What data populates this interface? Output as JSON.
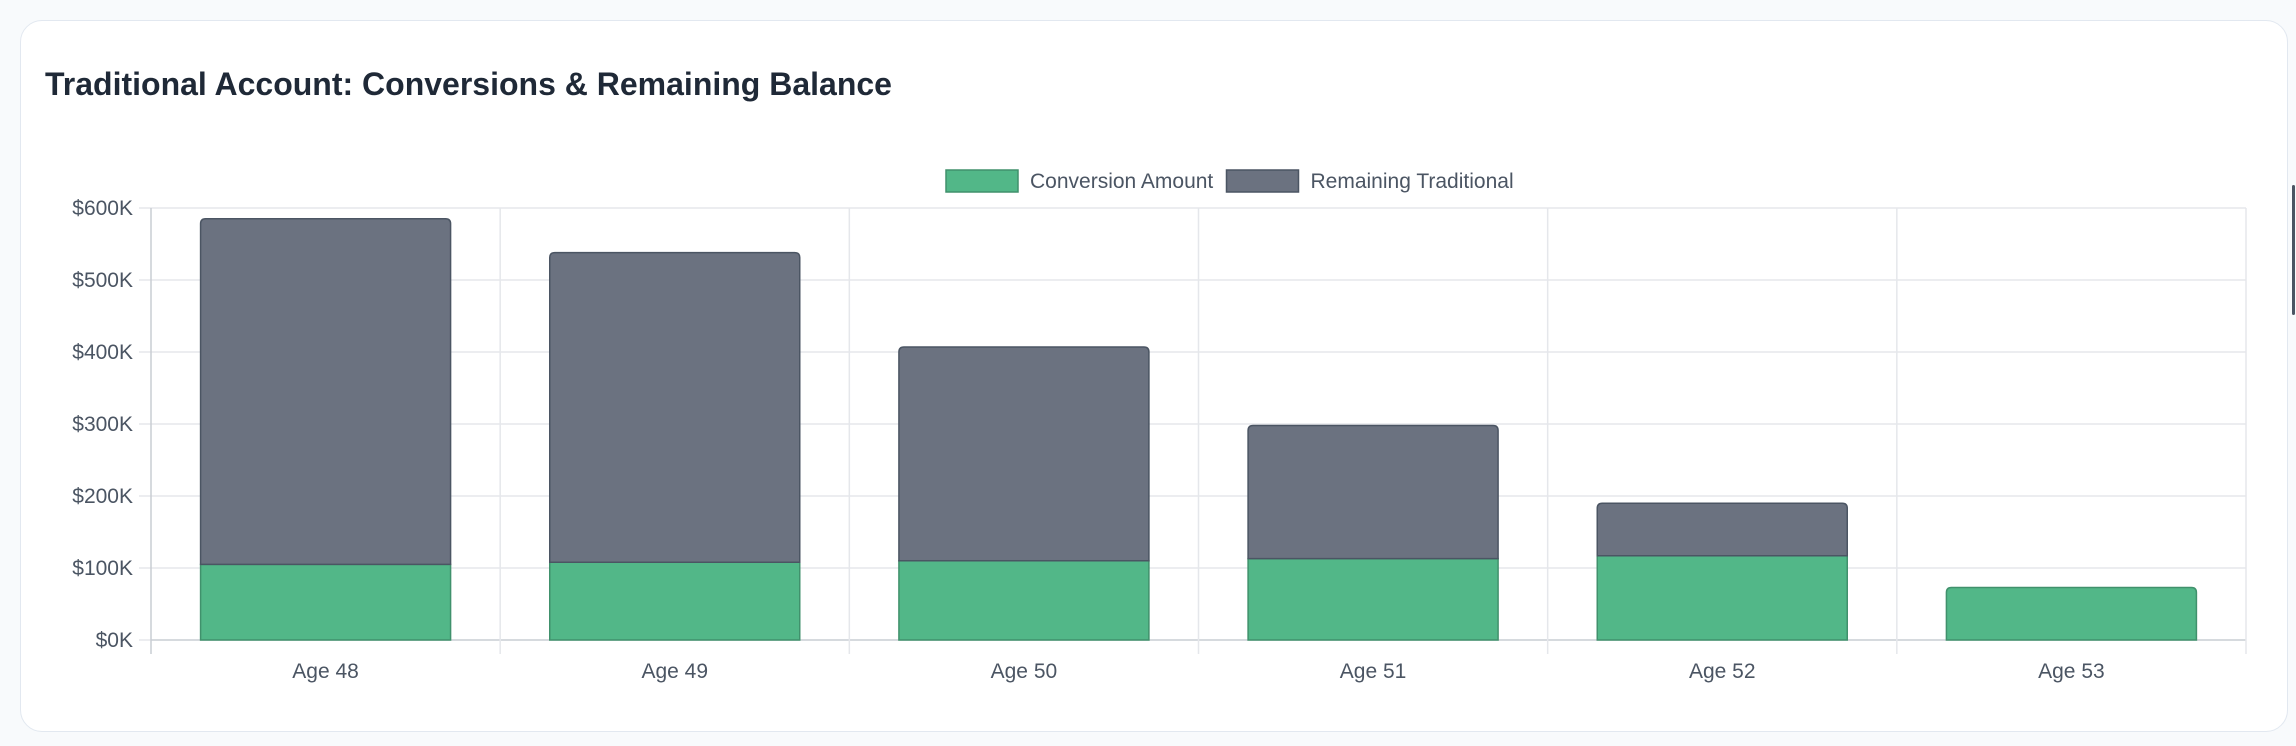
{
  "title": "Traditional Account: Conversions & Remaining Balance",
  "colors": {
    "conversion": "#52b788",
    "conversion_border": "#40916c",
    "remaining": "#6b7280",
    "remaining_border": "#4b5563"
  },
  "chart_data": {
    "type": "bar",
    "stacked": true,
    "categories": [
      "Age 48",
      "Age 49",
      "Age 50",
      "Age 51",
      "Age 52",
      "Age 53"
    ],
    "series": [
      {
        "name": "Conversion Amount",
        "values": [
          105000,
          108000,
          110000,
          113000,
          117000,
          73000
        ]
      },
      {
        "name": "Remaining Traditional",
        "values": [
          480000,
          430000,
          297000,
          185000,
          73000,
          0
        ]
      }
    ],
    "y_ticks": [
      "$0K",
      "$100K",
      "$200K",
      "$300K",
      "$400K",
      "$500K",
      "$600K"
    ],
    "ylim": [
      0,
      600000
    ],
    "xlabel": "",
    "ylabel": "",
    "legend": "top-center",
    "grid": true
  }
}
